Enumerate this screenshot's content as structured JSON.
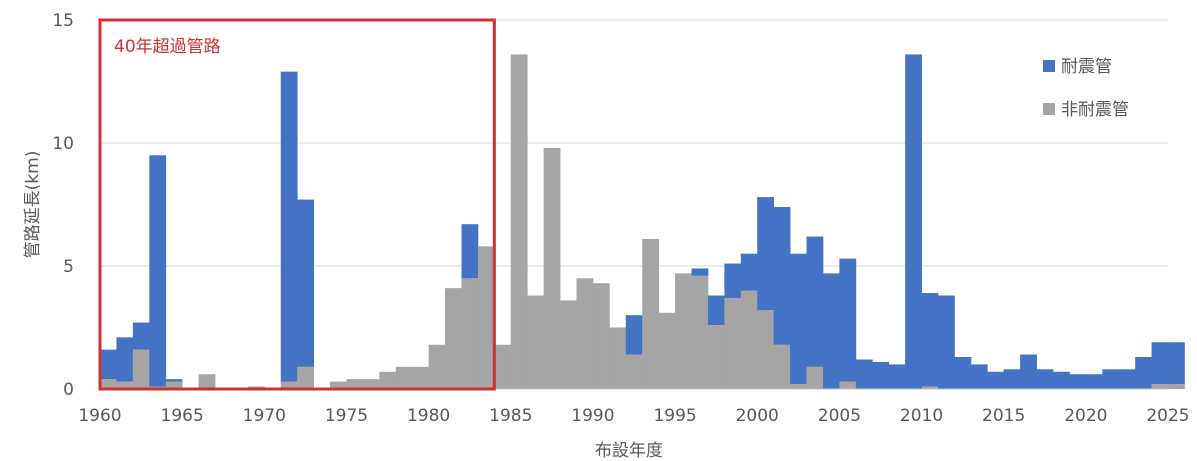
{
  "chart_data": {
    "type": "bar",
    "stacked": true,
    "title": "",
    "xlabel": "布設年度",
    "ylabel": "管路延長(km)",
    "ylim": [
      0,
      15
    ],
    "yticks": [
      0,
      5,
      10,
      15
    ],
    "xticks": [
      1960,
      1965,
      1970,
      1975,
      1980,
      1985,
      1990,
      1995,
      2000,
      2005,
      2010,
      2015,
      2020,
      2025
    ],
    "grid": true,
    "legend_position": "top-right",
    "x": [
      1960,
      1961,
      1962,
      1963,
      1964,
      1965,
      1966,
      1967,
      1968,
      1969,
      1970,
      1971,
      1972,
      1973,
      1974,
      1975,
      1976,
      1977,
      1978,
      1979,
      1980,
      1981,
      1982,
      1983,
      1984,
      1985,
      1986,
      1987,
      1988,
      1989,
      1990,
      1991,
      1992,
      1993,
      1994,
      1995,
      1996,
      1997,
      1998,
      1999,
      2000,
      2001,
      2002,
      2003,
      2004,
      2005,
      2006,
      2007,
      2008,
      2009,
      2010,
      2011,
      2012,
      2013,
      2014,
      2015,
      2016,
      2017,
      2018,
      2019,
      2020,
      2021,
      2022,
      2023,
      2024,
      2025
    ],
    "series": [
      {
        "name": "非耐震管",
        "color": "#a5a5a5",
        "values": [
          0.4,
          0.3,
          1.6,
          0.1,
          0.3,
          0,
          0.6,
          0,
          0,
          0.1,
          0,
          0.3,
          0.9,
          0,
          0.3,
          0.4,
          0.4,
          0.7,
          0.9,
          0.9,
          1.8,
          4.1,
          4.5,
          5.8,
          1.8,
          13.6,
          3.8,
          9.8,
          3.6,
          4.5,
          4.3,
          2.5,
          1.4,
          6.1,
          3.1,
          4.7,
          4.6,
          2.6,
          3.7,
          4.0,
          3.2,
          1.8,
          0.2,
          0.9,
          0,
          0.3,
          0,
          0,
          0,
          0,
          0.1,
          0,
          0,
          0,
          0,
          0,
          0,
          0,
          0,
          0,
          0,
          0,
          0,
          0,
          0.2,
          0.2
        ]
      },
      {
        "name": "耐震管",
        "color": "#4472c4",
        "values": [
          1.2,
          1.8,
          1.1,
          9.4,
          0.1,
          0,
          0,
          0,
          0,
          0,
          0,
          12.6,
          6.8,
          0,
          0,
          0,
          0,
          0,
          0,
          0,
          0,
          0,
          2.2,
          0,
          0,
          0,
          0,
          0,
          0,
          0,
          0,
          0,
          1.6,
          0,
          0,
          0,
          0.3,
          1.2,
          1.4,
          1.5,
          4.6,
          5.6,
          5.3,
          5.3,
          4.7,
          5.0,
          1.2,
          1.1,
          1.0,
          13.6,
          3.8,
          3.8,
          1.3,
          1.0,
          0.7,
          0.8,
          1.4,
          0.8,
          0.7,
          0.6,
          0.6,
          0.8,
          0.8,
          1.3,
          1.7,
          1.7
        ]
      }
    ],
    "legend": [
      {
        "label": "耐震管",
        "color": "#4472c4"
      },
      {
        "label": "非耐震管",
        "color": "#a5a5a5"
      }
    ],
    "annotation": {
      "label": "40年超過管路",
      "color": "#d03030",
      "x_range": [
        1960,
        1984
      ],
      "y_range": [
        0,
        15
      ]
    }
  }
}
